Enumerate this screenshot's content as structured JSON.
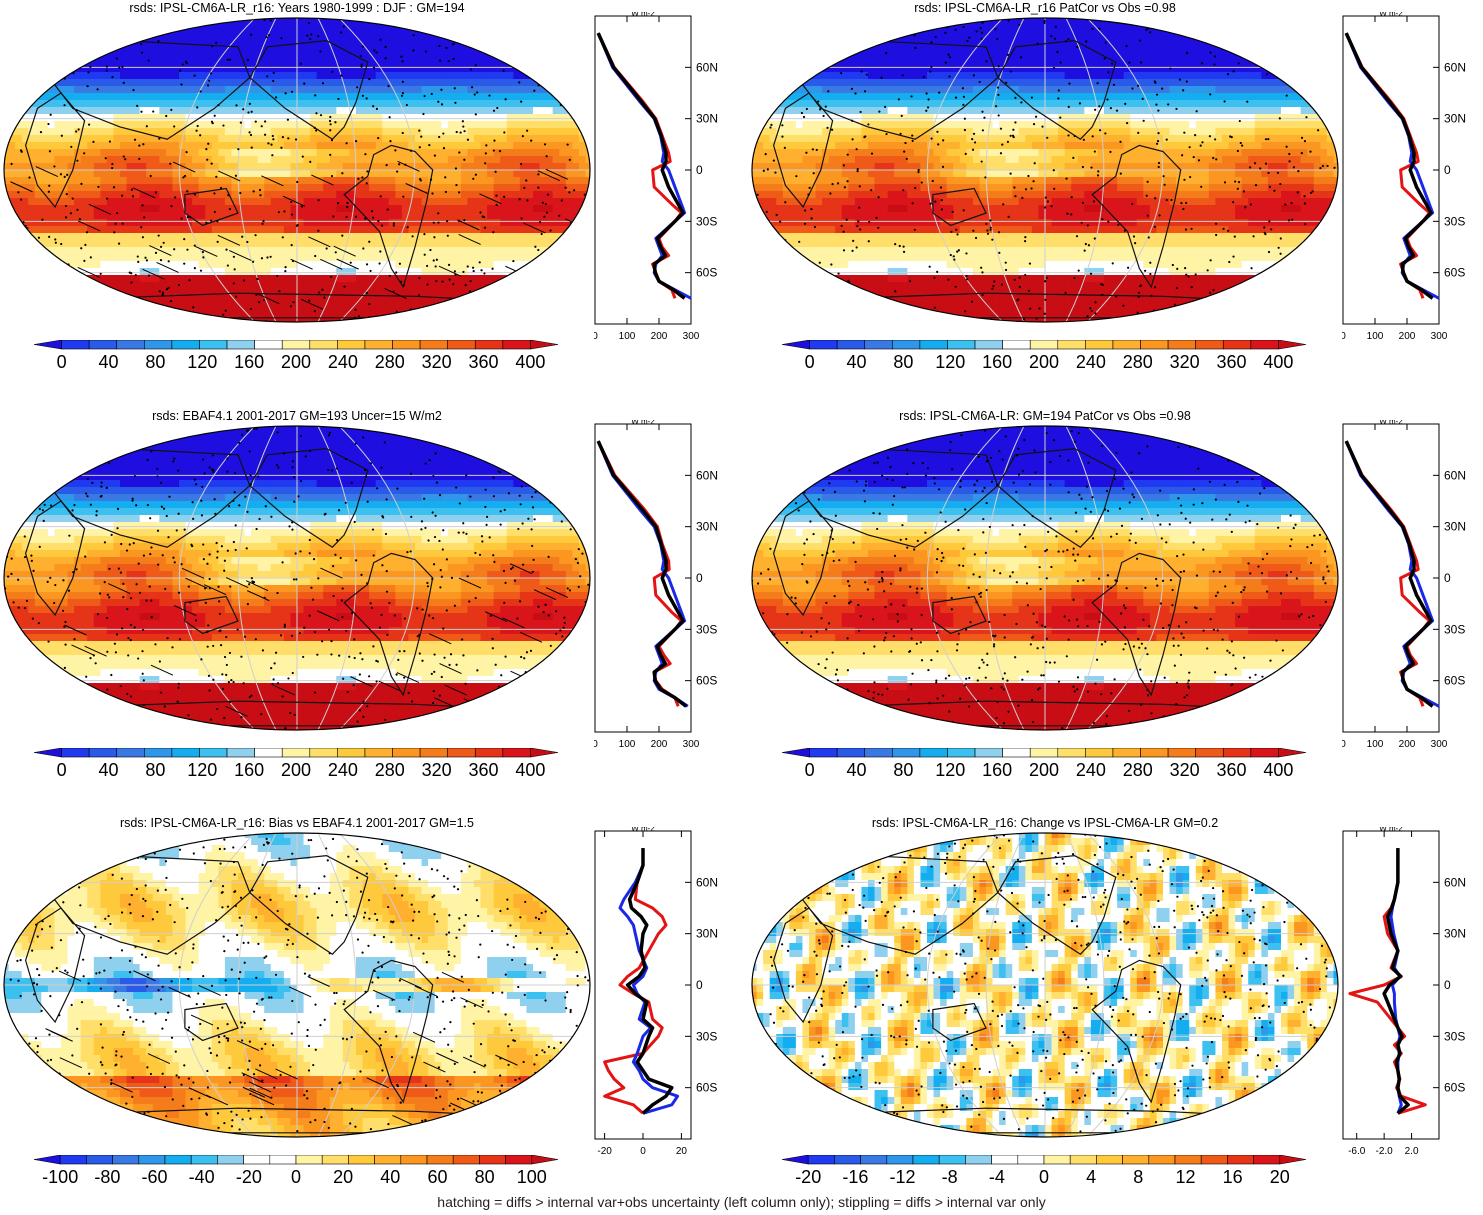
{
  "footer": "hatching = diffs > internal var+obs uncertainty (left column only); stippling = diffs > internal var only",
  "colors": {
    "abs_palette": [
      "#1e0fe0",
      "#1f3af0",
      "#2a5ae8",
      "#3a78e4",
      "#2f96ea",
      "#14aef0",
      "#3cc0f0",
      "#8fd0ee",
      "#ffffff",
      "#fff3a6",
      "#ffdf6a",
      "#ffc93c",
      "#ffb02e",
      "#fb9620",
      "#f57c1a",
      "#ef5a18",
      "#e53418",
      "#d9141b",
      "#c80d15"
    ],
    "diff_palette": [
      "#1e0fe0",
      "#1f3af0",
      "#2a5ae8",
      "#3a78e4",
      "#2f96ea",
      "#14aef0",
      "#3cc0f0",
      "#8fd0ee",
      "#ffffff",
      "#ffffff",
      "#fff3a6",
      "#ffdf6a",
      "#ffc93c",
      "#ffb02e",
      "#fb9620",
      "#f57c1a",
      "#ef5a18",
      "#e53418",
      "#d9141b",
      "#c80d15"
    ],
    "model_line": "#e41414",
    "obs_line": "#1a28e8",
    "ens_line": "#000000"
  },
  "chart_data": [
    {
      "type": "heatmap",
      "title": "rsds: IPSL-CM6A-LR_r16: Years 1980-1999 : DJF : GM=194",
      "colorbar": {
        "palette": "abs",
        "labels": [
          "0",
          "40",
          "80",
          "120",
          "160",
          "200",
          "240",
          "280",
          "320",
          "360",
          "400"
        ]
      },
      "field": "abs",
      "profile": {
        "xlabel": "W m-2",
        "xticks": [
          "0",
          "100",
          "200",
          "300"
        ],
        "xlim": [
          0,
          300
        ],
        "yticks": [
          "60N",
          "30N",
          "0",
          "30S",
          "60S"
        ],
        "lat": [
          80,
          60,
          40,
          30,
          20,
          10,
          5,
          0,
          -10,
          -20,
          -25,
          -30,
          -40,
          -45,
          -50,
          -55,
          -60,
          -65,
          -70,
          -75
        ],
        "red": [
          10,
          60,
          150,
          190,
          210,
          230,
          235,
          180,
          185,
          240,
          270,
          250,
          200,
          210,
          230,
          180,
          190,
          200,
          240,
          250
        ],
        "blue": [
          10,
          55,
          140,
          185,
          205,
          215,
          210,
          230,
          250,
          270,
          280,
          250,
          190,
          200,
          210,
          190,
          185,
          200,
          250,
          300
        ],
        "black": [
          10,
          58,
          145,
          187,
          207,
          222,
          222,
          210,
          230,
          260,
          275,
          250,
          195,
          205,
          220,
          185,
          188,
          200,
          245,
          280
        ]
      }
    },
    {
      "type": "heatmap",
      "title": "rsds: IPSL-CM6A-LR_r16 PatCor vs Obs =0.98",
      "colorbar": {
        "palette": "abs",
        "labels": [
          "0",
          "40",
          "80",
          "120",
          "160",
          "200",
          "240",
          "280",
          "320",
          "360",
          "400"
        ]
      },
      "field": "abs",
      "profile": {
        "xlabel": "W m-2",
        "xticks": [
          "0",
          "100",
          "200",
          "300"
        ],
        "xlim": [
          0,
          300
        ],
        "yticks": [
          "60N",
          "30N",
          "0",
          "30S",
          "60S"
        ],
        "lat": [
          80,
          60,
          40,
          30,
          20,
          10,
          5,
          0,
          -10,
          -20,
          -25,
          -30,
          -40,
          -45,
          -50,
          -55,
          -60,
          -65,
          -70,
          -75
        ],
        "red": [
          10,
          60,
          150,
          190,
          210,
          230,
          235,
          180,
          185,
          240,
          270,
          250,
          200,
          210,
          230,
          180,
          190,
          200,
          240,
          250
        ],
        "blue": [
          10,
          55,
          140,
          185,
          205,
          215,
          210,
          230,
          250,
          270,
          280,
          250,
          190,
          200,
          210,
          190,
          185,
          200,
          250,
          300
        ],
        "black": [
          10,
          58,
          145,
          187,
          207,
          222,
          222,
          210,
          230,
          260,
          275,
          250,
          195,
          205,
          220,
          185,
          188,
          200,
          245,
          280
        ]
      }
    },
    {
      "type": "heatmap",
      "title": "rsds: EBAF4.1 2001-2017 GM=193 Uncer=15 W/m2",
      "colorbar": {
        "palette": "abs",
        "labels": [
          "0",
          "40",
          "80",
          "120",
          "160",
          "200",
          "240",
          "280",
          "320",
          "360",
          "400"
        ]
      },
      "field": "abs",
      "profile": {
        "xlabel": "W m-2",
        "xticks": [
          "0",
          "100",
          "200",
          "300"
        ],
        "xlim": [
          0,
          300
        ],
        "yticks": [
          "60N",
          "30N",
          "0",
          "30S",
          "60S"
        ],
        "lat": [
          80,
          60,
          40,
          30,
          20,
          10,
          5,
          0,
          -10,
          -20,
          -25,
          -30,
          -40,
          -45,
          -50,
          -55,
          -60,
          -65,
          -70,
          -75
        ],
        "red": [
          10,
          62,
          155,
          195,
          210,
          230,
          232,
          185,
          190,
          240,
          270,
          250,
          200,
          215,
          235,
          185,
          190,
          210,
          250,
          260
        ],
        "blue": [
          10,
          55,
          140,
          185,
          205,
          215,
          210,
          230,
          250,
          270,
          280,
          250,
          190,
          200,
          210,
          190,
          185,
          200,
          250,
          290
        ],
        "black": [
          10,
          58,
          148,
          190,
          207,
          222,
          222,
          210,
          230,
          260,
          275,
          250,
          195,
          205,
          220,
          185,
          188,
          205,
          250,
          285
        ]
      }
    },
    {
      "type": "heatmap",
      "title": "rsds: IPSL-CM6A-LR: GM=194 PatCor vs Obs =0.98",
      "colorbar": {
        "palette": "abs",
        "labels": [
          "0",
          "40",
          "80",
          "120",
          "160",
          "200",
          "240",
          "280",
          "320",
          "360",
          "400"
        ]
      },
      "field": "abs",
      "profile": {
        "xlabel": "W m-2",
        "xticks": [
          "0",
          "100",
          "200",
          "300"
        ],
        "xlim": [
          0,
          300
        ],
        "yticks": [
          "60N",
          "30N",
          "0",
          "30S",
          "60S"
        ],
        "lat": [
          80,
          60,
          40,
          30,
          20,
          10,
          5,
          0,
          -10,
          -20,
          -25,
          -30,
          -40,
          -45,
          -50,
          -55,
          -60,
          -65,
          -70,
          -75
        ],
        "red": [
          10,
          60,
          150,
          190,
          210,
          230,
          235,
          180,
          185,
          240,
          270,
          250,
          200,
          210,
          230,
          180,
          190,
          200,
          240,
          250
        ],
        "blue": [
          10,
          55,
          140,
          185,
          205,
          215,
          210,
          230,
          250,
          270,
          280,
          250,
          190,
          200,
          210,
          190,
          185,
          200,
          250,
          300
        ],
        "black": [
          10,
          58,
          145,
          187,
          207,
          222,
          222,
          210,
          230,
          260,
          275,
          250,
          195,
          205,
          220,
          185,
          188,
          200,
          245,
          280
        ]
      }
    },
    {
      "type": "heatmap",
      "title": "rsds: IPSL-CM6A-LR_r16: Bias vs EBAF4.1 2001-2017 GM=1.5",
      "colorbar": {
        "palette": "diff",
        "labels": [
          "-100",
          "-80",
          "-60",
          "-40",
          "-20",
          "0",
          "20",
          "40",
          "60",
          "80",
          "100"
        ]
      },
      "field": "bias",
      "profile": {
        "xlabel": "W m-2",
        "xticks": [
          "-20",
          "0",
          "20"
        ],
        "xlim": [
          -25,
          25
        ],
        "yticks": [
          "60N",
          "30N",
          "0",
          "30S",
          "60S"
        ],
        "lat": [
          80,
          70,
          60,
          50,
          45,
          40,
          35,
          30,
          20,
          10,
          5,
          0,
          -5,
          -10,
          -20,
          -25,
          -30,
          -40,
          -45,
          -50,
          -55,
          -60,
          -65,
          -70,
          -75
        ],
        "red": [
          0,
          0,
          -3,
          -4,
          5,
          10,
          12,
          8,
          3,
          -2,
          -8,
          -12,
          -5,
          3,
          5,
          10,
          8,
          0,
          -20,
          -18,
          -15,
          -10,
          -20,
          -5,
          0
        ],
        "blue": [
          0,
          0,
          -4,
          -10,
          -12,
          -8,
          -5,
          -4,
          -2,
          2,
          0,
          -5,
          -3,
          1,
          -2,
          4,
          0,
          -3,
          -5,
          -2,
          0,
          5,
          18,
          15,
          0
        ],
        "black": [
          0,
          0,
          -3,
          -7,
          -6,
          -1,
          2,
          0,
          -1,
          1,
          -2,
          -8,
          -4,
          2,
          0,
          5,
          3,
          0,
          -3,
          0,
          3,
          15,
          12,
          5,
          0
        ]
      }
    },
    {
      "type": "heatmap",
      "title": "rsds: IPSL-CM6A-LR_r16: Change vs IPSL-CM6A-LR GM=0.2",
      "colorbar": {
        "palette": "diff",
        "labels": [
          "-20",
          "-16",
          "-12",
          "-8",
          "-4",
          "0",
          "4",
          "8",
          "12",
          "16",
          "20"
        ]
      },
      "field": "change",
      "profile": {
        "xlabel": "W m-2",
        "xticks": [
          "-6.0",
          "-2.0",
          "2.0"
        ],
        "xlim": [
          -8,
          6
        ],
        "yticks": [
          "60N",
          "30N",
          "0",
          "30S",
          "60S"
        ],
        "lat": [
          80,
          70,
          60,
          50,
          45,
          40,
          30,
          20,
          10,
          5,
          0,
          -5,
          -10,
          -20,
          -25,
          -30,
          -35,
          -40,
          -45,
          -50,
          -55,
          -60,
          -65,
          -70,
          -75
        ],
        "red": [
          0,
          0,
          0,
          -0.5,
          -1,
          -2,
          -1.5,
          0,
          -1,
          0.5,
          -2,
          -7,
          -3,
          -1,
          0,
          1,
          -0.5,
          0.5,
          -0.5,
          0,
          0.3,
          -0.2,
          0.5,
          4,
          0
        ],
        "blue": [
          0,
          0,
          0,
          -0.5,
          -0.8,
          -1,
          -0.6,
          0,
          -0.5,
          0.3,
          -0.8,
          -0.5,
          -0.5,
          -0.3,
          0,
          0.3,
          0,
          0.2,
          0,
          0,
          0.2,
          0,
          0.2,
          0.5,
          0
        ],
        "black": [
          0,
          0,
          0,
          -0.5,
          -0.9,
          -1.5,
          -1,
          0,
          -0.8,
          0.4,
          -1.2,
          -2,
          -1.5,
          -0.5,
          0,
          0.6,
          0,
          0.3,
          -0.2,
          0,
          0.2,
          0,
          0.3,
          1.5,
          0
        ]
      }
    }
  ]
}
